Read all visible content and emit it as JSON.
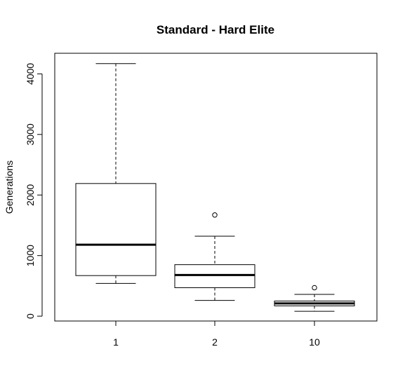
{
  "chart_data": {
    "type": "box",
    "title": "Standard - Hard Elite",
    "xlabel": "",
    "ylabel": "Generations",
    "categories": [
      "1",
      "2",
      "10"
    ],
    "ylim": [
      -80,
      4340
    ],
    "yticks": [
      0,
      1000,
      2000,
      3000,
      4000
    ],
    "grid": false,
    "boxes": [
      {
        "category": "1",
        "whisker_low": 540,
        "q1": 670,
        "median": 1180,
        "q3": 2190,
        "whisker_high": 4170,
        "outliers": []
      },
      {
        "category": "2",
        "whisker_low": 260,
        "q1": 470,
        "median": 680,
        "q3": 850,
        "whisker_high": 1320,
        "outliers": [
          1670
        ]
      },
      {
        "category": "10",
        "whisker_low": 80,
        "q1": 170,
        "median": 210,
        "q3": 250,
        "whisker_high": 360,
        "outliers": [
          470
        ]
      }
    ],
    "colors": {
      "box_fill": "#ffffff",
      "stroke": "#000000"
    }
  }
}
